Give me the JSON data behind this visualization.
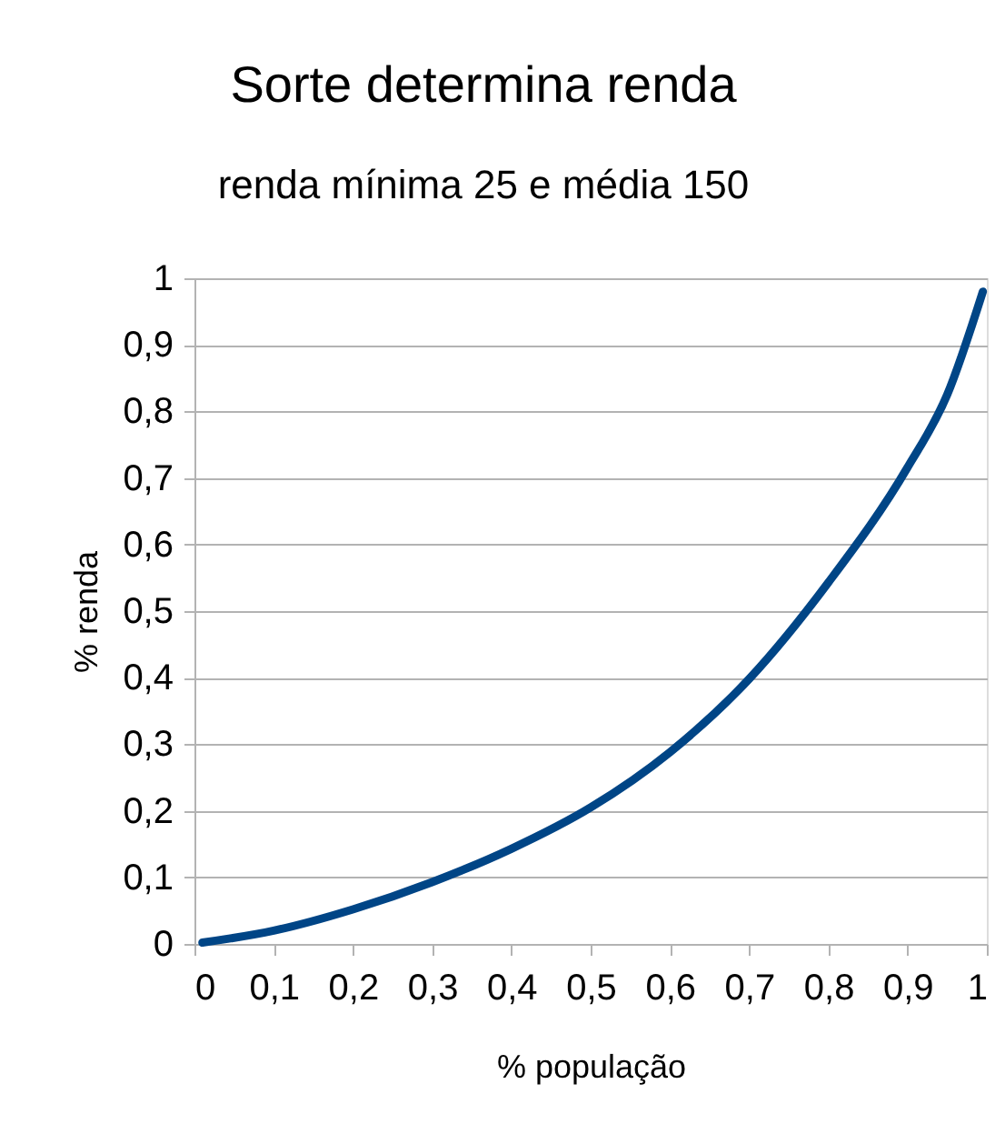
{
  "chart_data": {
    "type": "line",
    "title": "Sorte determina renda",
    "subtitle": "renda mínima 25 e média 150",
    "xlabel": "% população",
    "ylabel": "% renda",
    "x": [
      0.01,
      0.1,
      0.2,
      0.3,
      0.4,
      0.5,
      0.6,
      0.7,
      0.8,
      0.9,
      0.95,
      0.995
    ],
    "series": [
      {
        "color": "#004586",
        "values": [
          0.002,
          0.02,
          0.052,
          0.093,
          0.143,
          0.205,
          0.288,
          0.398,
          0.543,
          0.716,
          0.825,
          0.98
        ]
      }
    ],
    "xlim": [
      0,
      1
    ],
    "ylim": [
      0,
      1
    ],
    "xticks": [
      0,
      {
        "value": 0.1,
        "label": "0,1"
      },
      {
        "value": 0.2,
        "label": "0,2"
      },
      {
        "value": 0.3,
        "label": "0,3"
      },
      {
        "value": 0.4,
        "label": "0,4"
      },
      {
        "value": 0.5,
        "label": "0,5"
      },
      {
        "value": 0.6,
        "label": "0,6"
      },
      {
        "value": 0.7,
        "label": "0,7"
      },
      {
        "value": 0.8,
        "label": "0,8"
      },
      {
        "value": 0.9,
        "label": "0,9"
      },
      1
    ],
    "yticks": [
      0,
      {
        "value": 0.1,
        "label": "0,1"
      },
      {
        "value": 0.2,
        "label": "0,2"
      },
      {
        "value": 0.3,
        "label": "0,3"
      },
      {
        "value": 0.4,
        "label": "0,4"
      },
      {
        "value": 0.5,
        "label": "0,5"
      },
      {
        "value": 0.6,
        "label": "0,6"
      },
      {
        "value": 0.7,
        "label": "0,7"
      },
      {
        "value": 0.8,
        "label": "0,8"
      },
      {
        "value": 0.9,
        "label": "0,9"
      },
      1
    ],
    "grid": "y",
    "marker": "none",
    "line_style": "solid"
  }
}
